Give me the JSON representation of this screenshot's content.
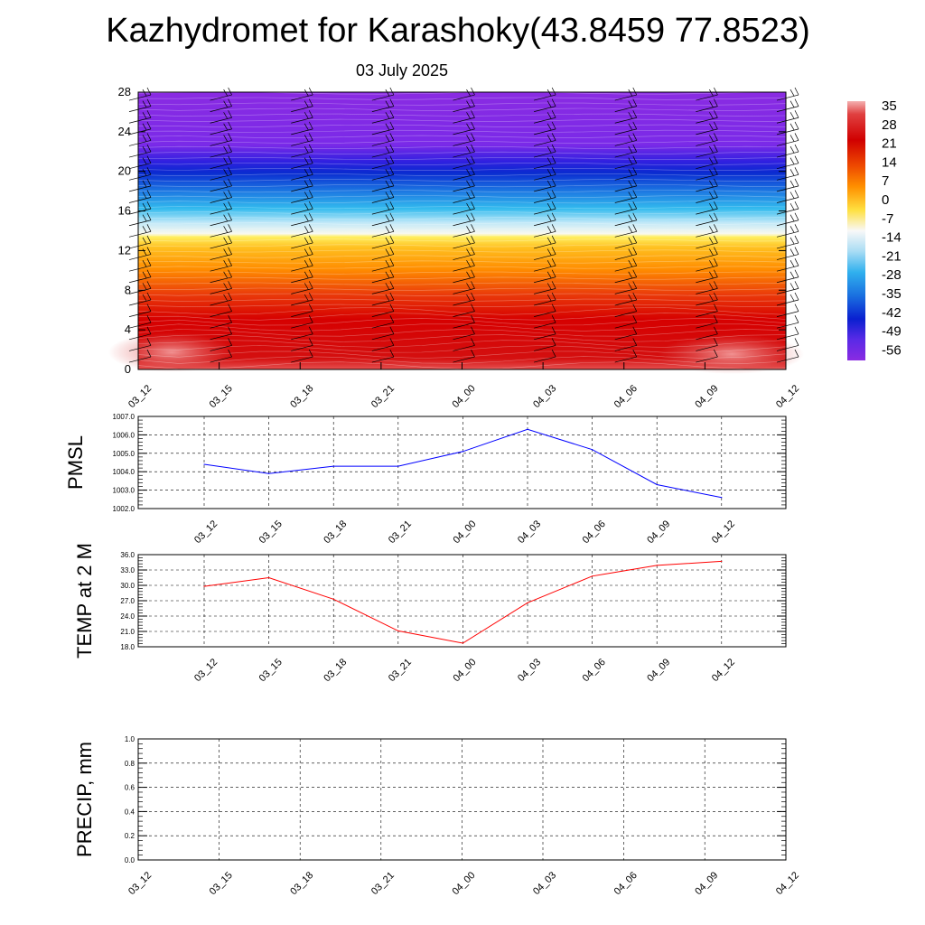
{
  "header": {
    "title": "Kazhydromet for Karashoky(43.8459 77.8523)",
    "date": "03 July 2025"
  },
  "chart_data": [
    {
      "type": "heatmap",
      "name": "temperature-wind-cross-section",
      "x_categories": [
        "03_12",
        "03_15",
        "03_18",
        "03_21",
        "04_00",
        "04_03",
        "04_06",
        "04_09",
        "04_12"
      ],
      "yticks": [
        "0",
        "4",
        "8",
        "12",
        "16",
        "20",
        "24",
        "28"
      ],
      "ylim": [
        0,
        28
      ],
      "colorbar_labels": [
        "35",
        "28",
        "21",
        "14",
        "7",
        "0",
        "-7",
        "-14",
        "-21",
        "-28",
        "-35",
        "-42",
        "-49",
        "-56"
      ],
      "colors": {
        "warm_max": "#f08080",
        "hot": "#d40000",
        "orange": "#ff8c00",
        "yellow": "#ffee55",
        "white": "#f5f5f5",
        "cyan": "#33bbee",
        "blue": "#0a2ad0",
        "purple": "#8a2be2"
      },
      "approx_temperature_by_height": [
        {
          "y": 0,
          "t": 33
        },
        {
          "y": 2,
          "t": 30
        },
        {
          "y": 6,
          "t": 24
        },
        {
          "y": 9,
          "t": 14
        },
        {
          "y": 12,
          "t": 2
        },
        {
          "y": 13.5,
          "t": -10
        },
        {
          "y": 16,
          "t": -25
        },
        {
          "y": 19,
          "t": -40
        },
        {
          "y": 20.5,
          "t": -48
        },
        {
          "y": 23,
          "t": -56
        },
        {
          "y": 28,
          "t": -58
        }
      ]
    },
    {
      "type": "line",
      "name": "pmsl",
      "ylabel": "PMSL",
      "categories": [
        "03_12",
        "03_15",
        "03_18",
        "03_21",
        "04_00",
        "04_03",
        "04_06",
        "04_09",
        "04_12"
      ],
      "values": [
        1004.4,
        1003.9,
        1004.3,
        1004.3,
        1005.1,
        1006.3,
        1005.2,
        1003.3,
        1002.6
      ],
      "yticks": [
        "1002.0",
        "1003.0",
        "1004.0",
        "1005.0",
        "1006.0",
        "1007.0"
      ],
      "ylim": [
        1002,
        1007
      ],
      "color": "#0000ff"
    },
    {
      "type": "line",
      "name": "temp-2m",
      "ylabel": "TEMP at 2 M",
      "categories": [
        "03_12",
        "03_15",
        "03_18",
        "03_21",
        "04_00",
        "04_03",
        "04_06",
        "04_09",
        "04_12"
      ],
      "values": [
        29.8,
        31.5,
        27.3,
        21.1,
        18.7,
        26.6,
        31.8,
        33.9,
        34.7
      ],
      "yticks": [
        "18.0",
        "21.0",
        "24.0",
        "27.0",
        "30.0",
        "33.0",
        "36.0"
      ],
      "ylim": [
        18,
        36
      ],
      "color": "#ff0000"
    },
    {
      "type": "line",
      "name": "precip",
      "ylabel": "PRECIP, mm",
      "categories": [
        "03_12",
        "03_15",
        "03_18",
        "03_21",
        "04_00",
        "04_03",
        "04_06",
        "04_09",
        "04_12"
      ],
      "values": [
        0,
        0,
        0,
        0,
        0,
        0,
        0,
        0,
        0
      ],
      "yticks": [
        "0.0",
        "0.2",
        "0.4",
        "0.6",
        "0.8",
        "1.0"
      ],
      "ylim": [
        0,
        1
      ],
      "color": "#006400"
    }
  ]
}
